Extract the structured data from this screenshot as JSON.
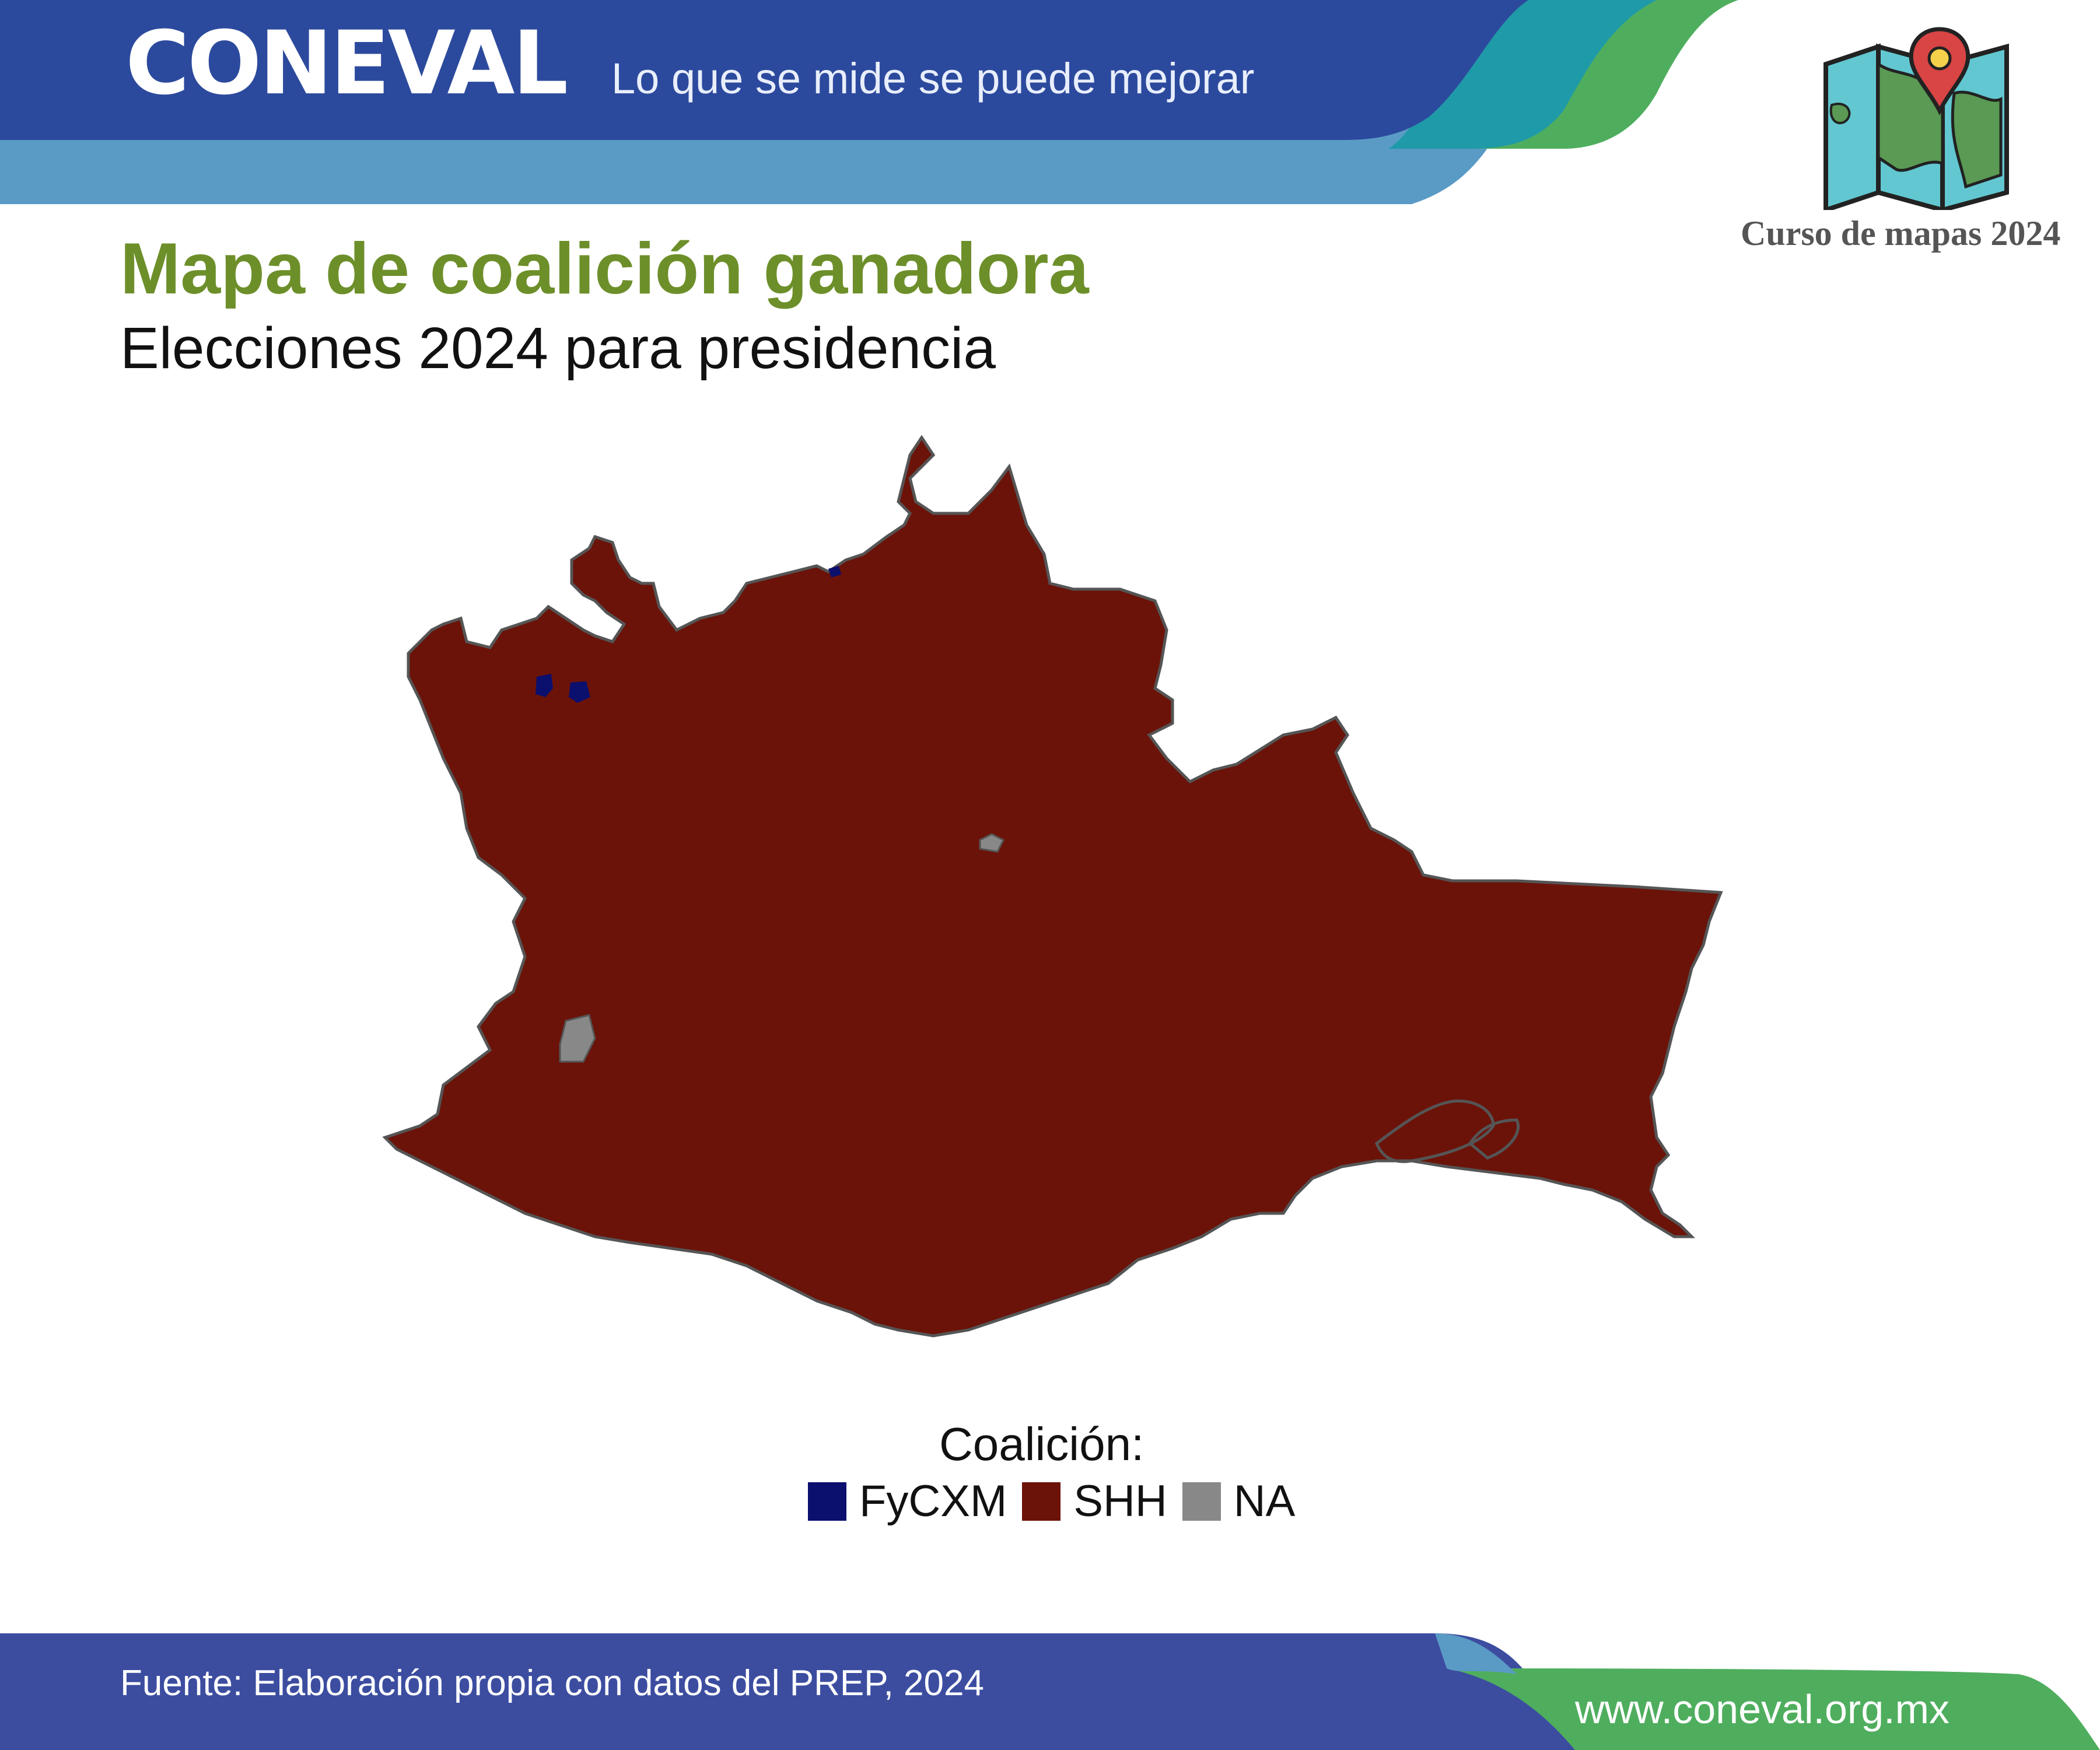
{
  "header": {
    "brand": "CONEVAL",
    "tagline": "Lo que se mide se puede mejorar",
    "course_title": "Curso de mapas 2024"
  },
  "title": "Mapa de coalición ganadora",
  "subtitle": "Elecciones 2024 para presidencia",
  "legend": {
    "title": "Coalición:",
    "items": [
      {
        "label": "FyCXM",
        "color": "#0b0f6e"
      },
      {
        "label": "SHH",
        "color": "#6b1309"
      },
      {
        "label": "NA",
        "color": "#888888"
      }
    ]
  },
  "footer": {
    "source": "Fuente: Elaboración propia con datos del PREP, 2024",
    "site": "www.coneval.org.mx"
  },
  "colors": {
    "header_blue": "#2c4a9d",
    "header_light_blue": "#5a9bc6",
    "teal": "#1f9aa8",
    "green": "#4fae5e",
    "title_green": "#6d8f2a",
    "map_fill": "#6b1309",
    "map_border": "#555555"
  },
  "icons": {
    "course": "folded-map-pin-icon"
  }
}
